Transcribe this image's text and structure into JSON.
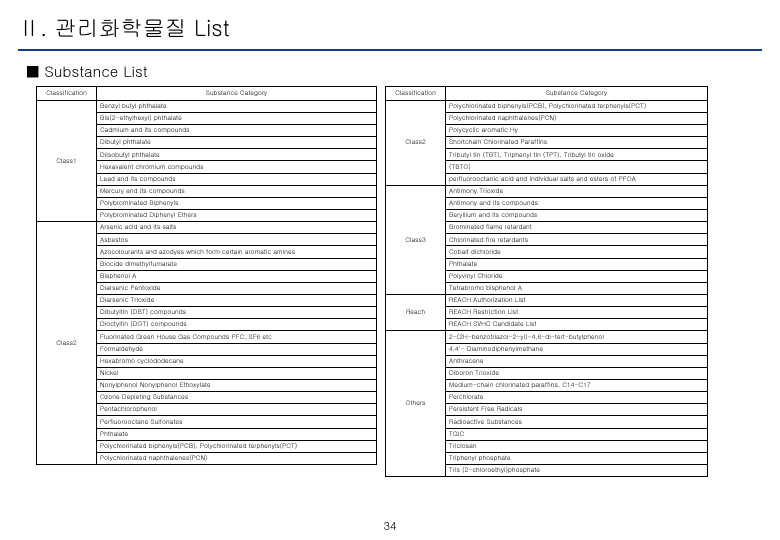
{
  "title": "Ⅱ. 관리화학물질 List",
  "section": "Substance List",
  "h": {
    "class": "Classification",
    "cat": "Substance Category"
  },
  "L": {
    "c1": "Class1",
    "c1r": [
      "Benzyl butyl phthalate",
      "Bis(2-ethylhexyl) phthalate",
      "Cadmium and its compounds",
      "Dibutyl phthalate",
      "Diisobutyl phthalate",
      "Hexavalent chromium compounds",
      "Lead and its compounds",
      "Mercury and its compounds",
      "Polybrominated Biphenyls",
      "Polybrominated Diphenyl Ethers",
      "Arsenic acid and its salts",
      "Asbestos",
      "Azocolourants and azodyes which form certain aromatic amines",
      "Biocide dimethylfumarate",
      "Bisphenol A",
      "Diarsenic Pentoxide",
      "Diarsenic Trioxide",
      "Dibutyltin (DBT) compounds",
      "Dioctyltin (DOT) compounds"
    ],
    "c2": "Class2",
    "c2r": [
      "Fluorinated Green House Gas Compounds PFC, SF6 etc",
      "Formaldehyde",
      "Hexabromo cyclododecane",
      "Nickel",
      "Nonylphenol Nonylphenol Ethoxylate",
      "Ozone Depleting Substances",
      "Pentachlorophenol",
      "Perfluorooctane Sulfonates",
      "Phthalate",
      "Polychlorinated biphenyls(PCB), Polychlorinated terphenyls(PCT)",
      "Polychlorinated naphthalenes(PCN)"
    ]
  },
  "R": {
    "c2": "Class2",
    "c2r": [
      "Polychlorinated biphenyls(PCB), Polychlorinated terphenyls(PCT)",
      "Polychlorinated naphthalenes(PCN)",
      "Polycyclic aromatic Hy",
      "Shortchain Chlorinated Paraffins",
      "Tributyl tin (TBT), Triphenyl tin (TPT), Tributyl tin oxide",
      "(TBTO)",
      "perfluorooctanic acid and individual salts and esters of PFOA"
    ],
    "c3": "Class3",
    "c3r": [
      "Antimony Trioxide",
      "Antimony and its compounds",
      "Beryllium and its compounds",
      "Brominated flame retardant",
      "Chlorinated fire retardants",
      "Cobalt dichloride",
      "Phthalate",
      "Polyvinyl Chloride",
      "Tetrabromo bisphenol A"
    ],
    "reach": "Reach",
    "reachr": [
      "REACH Authorization List",
      "REACH Restriction List",
      "REACH SVHC Candidate List"
    ],
    "oth": "Others",
    "othr": [
      "2-(2H-benzotriazol-2-yl)-4,6-di-tert-butylphenol",
      "4,4'- Diaminodiphenylmethane",
      "Anthracene",
      "Diboron Trioxide",
      "Medium-chain chlorinated paraffins, C14-C17",
      "Perchlorate",
      "Persistent Free Radicals",
      "Radioactive Substances",
      "TGIC",
      "Triclosan",
      "Triphenyl phosphate",
      "Tris (2-chloroethyl)phosphate"
    ]
  },
  "page": "34"
}
